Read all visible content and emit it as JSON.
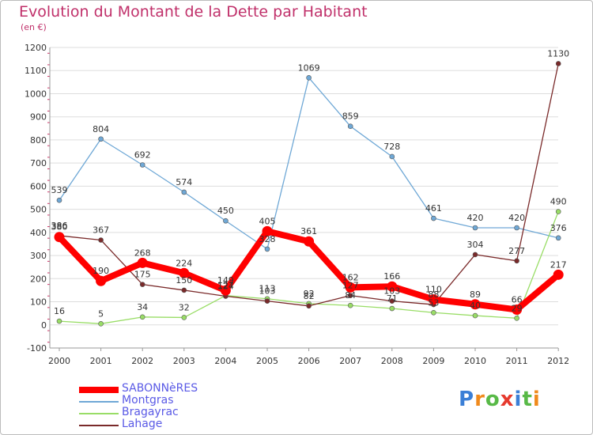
{
  "chart_data": {
    "type": "line",
    "title": "Evolution du Montant de la Dette par Habitant",
    "subtitle": "(en €)",
    "xlabel": "",
    "ylabel": "",
    "x": [
      "2000",
      "2001",
      "2002",
      "2003",
      "2004",
      "2005",
      "2006",
      "2007",
      "2008",
      "2009",
      "2010",
      "2011",
      "2012"
    ],
    "ylim": [
      -100,
      1200
    ],
    "yticks": [
      -100,
      0,
      100,
      200,
      300,
      400,
      500,
      600,
      700,
      800,
      900,
      1000,
      1100,
      1200
    ],
    "grid": "horizontal",
    "legend_position": "bottom-left",
    "series": [
      {
        "name": "SABONNèRES",
        "color": "#ff0000",
        "emphasis": true,
        "values": [
          380,
          190,
          268,
          224,
          149,
          405,
          361,
          162,
          166,
          110,
          89,
          66,
          217
        ],
        "labels": [
          "380",
          "190",
          "268",
          "224",
          "149",
          "405",
          "361",
          "162",
          "166",
          "110",
          "89",
          "66",
          "217"
        ]
      },
      {
        "name": "Montgras",
        "color": "#6fa8d6",
        "values": [
          539,
          804,
          692,
          574,
          450,
          328,
          1069,
          859,
          728,
          461,
          420,
          420,
          376
        ],
        "labels": [
          "539",
          "804",
          "692",
          "574",
          "450",
          "328",
          "1069",
          "859",
          "728",
          "461",
          "420",
          "420",
          "376"
        ]
      },
      {
        "name": "Bragayrac",
        "color": "#99dd66",
        "values": [
          16,
          5,
          34,
          32,
          127,
          113,
          92,
          84,
          71,
          53,
          40,
          29,
          490
        ],
        "labels": [
          "16",
          "5",
          "34",
          "32",
          "127",
          "113",
          "92",
          "84",
          "71",
          "53",
          "40",
          "29",
          "490"
        ]
      },
      {
        "name": "Lahage",
        "color": "#7a2a2a",
        "values": [
          386,
          367,
          175,
          150,
          124,
          103,
          82,
          127,
          103,
          88,
          304,
          277,
          1130
        ],
        "labels": [
          "386",
          "367",
          "175",
          "150",
          "124",
          "103",
          "82",
          "127",
          "103",
          "88",
          "304",
          "277",
          "1130"
        ]
      }
    ]
  },
  "branding": {
    "logo_letters": [
      "P",
      "r",
      "o",
      "x",
      "i",
      "t",
      "i"
    ],
    "logo_colors": [
      "#3b7fd6",
      "#f08a1c",
      "#58b947",
      "#e63a2e",
      "#3b7fd6",
      "#58b947",
      "#f08a1c"
    ]
  }
}
